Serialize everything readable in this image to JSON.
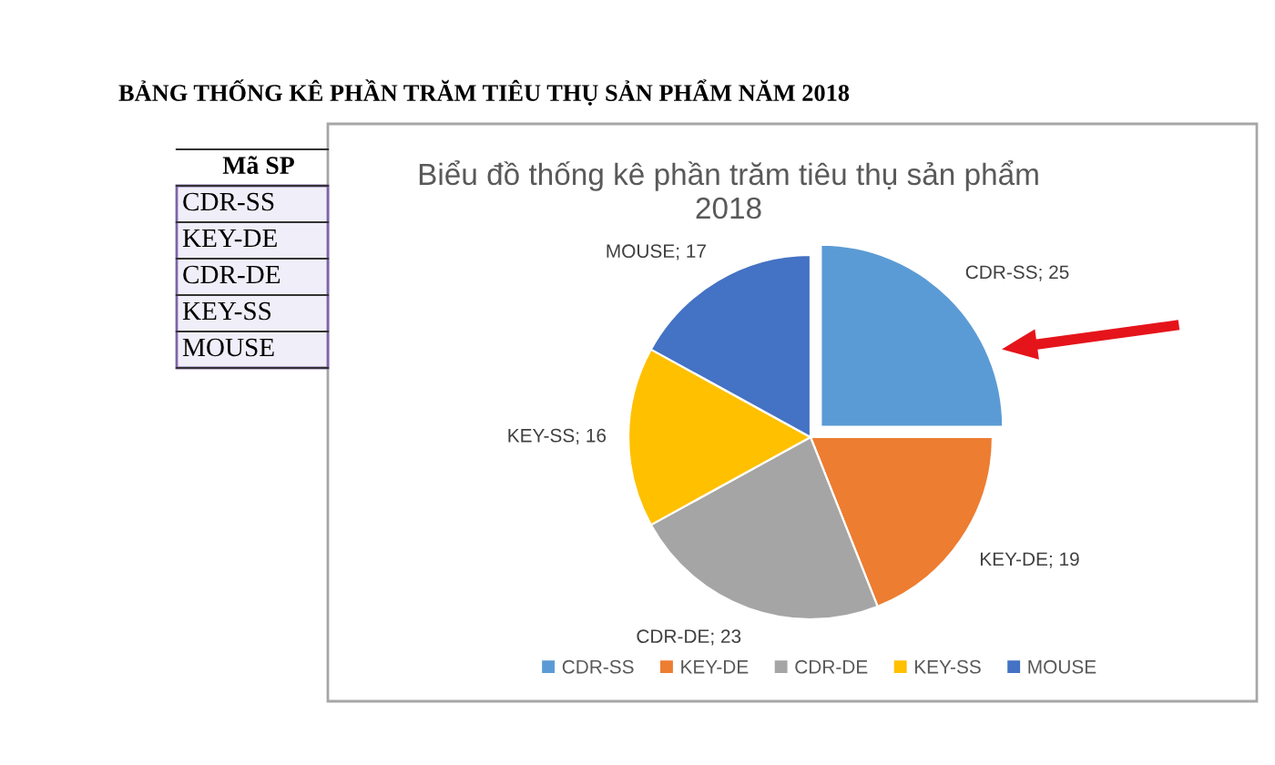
{
  "chart_data": {
    "type": "pie",
    "title": "Biểu đồ thống kê phần trăm tiêu thụ sản phẩm\n2018",
    "categories": [
      "CDR-SS",
      "KEY-DE",
      "CDR-DE",
      "KEY-SS",
      "MOUSE"
    ],
    "values": [
      25,
      19,
      23,
      16,
      17
    ],
    "colors": [
      "#5b9bd5",
      "#ed7d31",
      "#a5a5a5",
      "#ffc000",
      "#4472c4"
    ],
    "value_labels": [
      "CDR-SS; 25",
      "KEY-DE; 19",
      "CDR-DE; 23",
      "KEY-SS; 16",
      "MOUSE; 17"
    ],
    "legend": "bottom",
    "annotations": [
      "BẢNG THỐNG KÊ PHẦN TRĂM TIÊU THỤ SẢN PHẨM NĂM 2018",
      "Mã SP",
      "CDR-SS",
      "KEY-DE",
      "CDR-DE",
      "KEY-SS",
      "MOUSE"
    ]
  }
}
